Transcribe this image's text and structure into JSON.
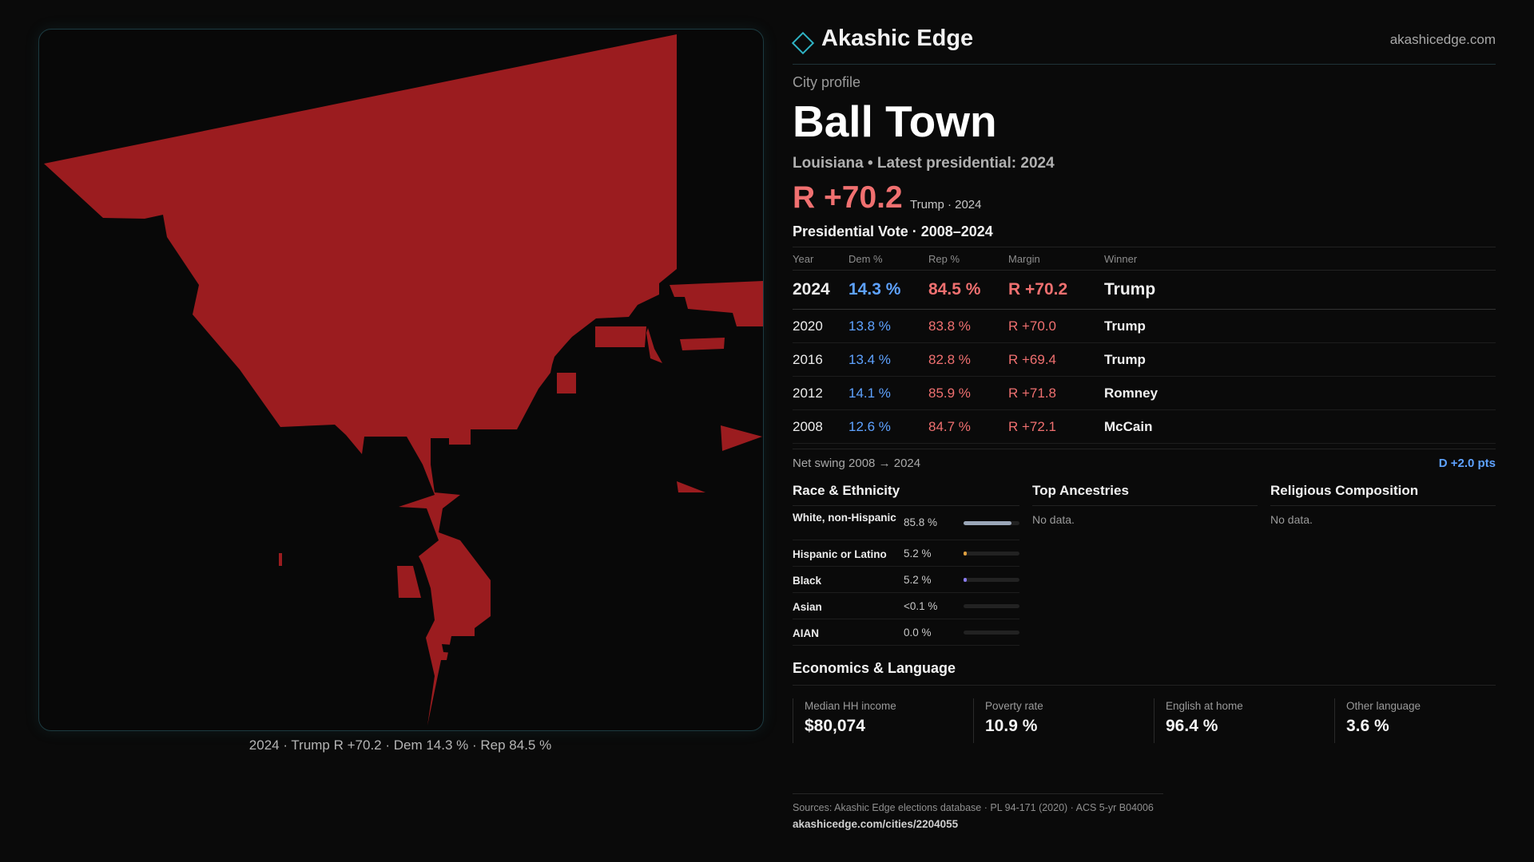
{
  "brand": {
    "name": "Akashic Edge",
    "url": "akashicedge.com",
    "accent": "#2fb3c4"
  },
  "map": {
    "caption": "2024 · Trump R +70.2 · Dem 14.3 % · Rep 84.5 %",
    "fill_color": "#9b1c1f"
  },
  "profile": {
    "eyebrow": "City profile",
    "title": "Ball Town",
    "subtitle": "Louisiana • Latest presidential: 2024",
    "headline_margin": "R +70.2",
    "headline_detail": "Trump · 2024"
  },
  "vote": {
    "title": "Presidential Vote · 2008–2024",
    "columns": [
      "Year",
      "Dem %",
      "Rep %",
      "Margin",
      "Winner"
    ],
    "rows": [
      {
        "year": "2024",
        "dem": "14.3 %",
        "rep": "84.5 %",
        "margin": "R +70.2",
        "winner": "Trump"
      },
      {
        "year": "2020",
        "dem": "13.8 %",
        "rep": "83.8 %",
        "margin": "R +70.0",
        "winner": "Trump"
      },
      {
        "year": "2016",
        "dem": "13.4 %",
        "rep": "82.8 %",
        "margin": "R +69.4",
        "winner": "Trump"
      },
      {
        "year": "2012",
        "dem": "14.1 %",
        "rep": "85.9 %",
        "margin": "R +71.8",
        "winner": "Romney"
      },
      {
        "year": "2008",
        "dem": "12.6 %",
        "rep": "84.7 %",
        "margin": "R +72.1",
        "winner": "McCain"
      }
    ],
    "swing_label": "Net swing 2008 → 2024",
    "swing_value": "D +2.0 pts"
  },
  "race": {
    "title": "Race & Ethnicity",
    "items": [
      {
        "label": "White, non-Hispanic",
        "value": "85.8 %",
        "share": 0.858,
        "color": "#9aa6b8"
      },
      {
        "label": "Hispanic or Latino",
        "value": "5.2 %",
        "share": 0.052,
        "color": "#e0a040"
      },
      {
        "label": "Black",
        "value": "5.2 %",
        "share": 0.052,
        "color": "#8a7cf0"
      },
      {
        "label": "Asian",
        "value": "<0.1 %",
        "share": 0.0,
        "color": "#4fc0b0"
      },
      {
        "label": "AIAN",
        "value": "0.0 %",
        "share": 0.0,
        "color": "#c07050"
      }
    ]
  },
  "ancestries": {
    "title": "Top Ancestries",
    "empty": "No data."
  },
  "religion": {
    "title": "Religious Composition",
    "empty": "No data."
  },
  "economics": {
    "title": "Economics & Language",
    "items": [
      {
        "label": "Median HH income",
        "value": "$80,074"
      },
      {
        "label": "Poverty rate",
        "value": "10.9 %"
      },
      {
        "label": "English at home",
        "value": "96.4 %"
      },
      {
        "label": "Other language",
        "value": "3.6 %"
      }
    ]
  },
  "sources": {
    "line": "Sources: Akashic Edge elections database · PL 94-171 (2020) · ACS 5-yr B04006",
    "url": "akashicedge.com/cities/2204055"
  }
}
